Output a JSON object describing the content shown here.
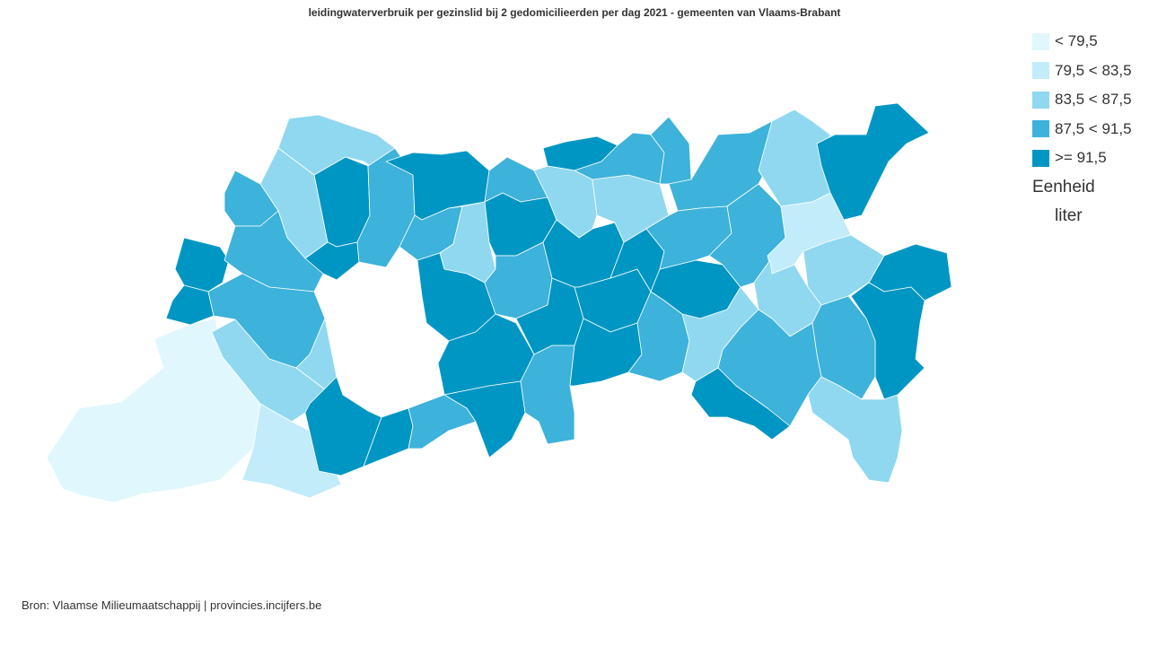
{
  "title": "leidingwaterverbruik per gezinslid bij 2 gedomicilieerden per dag 2021 - gemeenten van Vlaams-Brabant",
  "legend": {
    "classes": [
      {
        "label": "< 79,5",
        "color": "#e0f7fd"
      },
      {
        "label": "79,5 < 83,5",
        "color": "#c2ecf9"
      },
      {
        "label": "83,5 < 87,5",
        "color": "#8fd8f0"
      },
      {
        "label": "87,5 < 91,5",
        "color": "#3db2da"
      },
      {
        "label": ">= 91,5",
        "color": "#0096c3"
      }
    ],
    "unit_title": "Eenheid",
    "unit_value": "liter"
  },
  "source": "Bron: Vlaamse Milieumaatschappij | provincies.incijfers.be"
}
